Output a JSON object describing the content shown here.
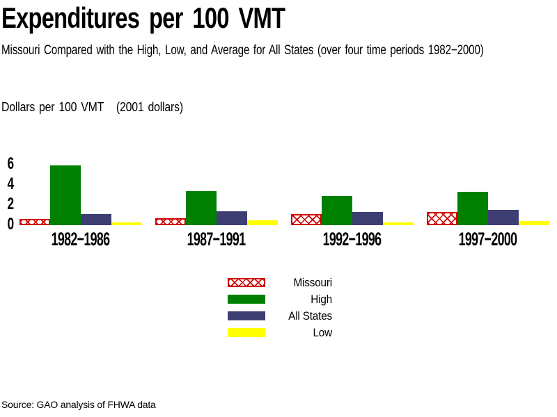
{
  "header": {
    "title": "Expenditures per 100 VMT",
    "subtitle": "Missouri Compared with the High, Low, and Average for All States (over four time periods 1982−2000)"
  },
  "axis": {
    "y_title": "Dollars per 100 VMT   (2001 dollars)"
  },
  "chart_data": {
    "type": "bar",
    "title": "Expenditures per 100 VMT",
    "subtitle": "Missouri Compared with the High, Low, and Average for All States (over four time periods 1982−2000)",
    "ylabel": "Dollars per 100 VMT (2001 dollars)",
    "xlabel": "",
    "categories": [
      "1982−1986",
      "1987−1991",
      "1992−1996",
      "1997−2000"
    ],
    "series": [
      {
        "key": "missouri",
        "name": "Missouri",
        "pattern": "crosshatch",
        "color": "#ce0000",
        "values": [
          0.6,
          0.7,
          1.1,
          1.3
        ]
      },
      {
        "key": "high",
        "name": "High",
        "pattern": "solid",
        "color": "#008000",
        "values": [
          5.9,
          3.4,
          2.9,
          3.3
        ]
      },
      {
        "key": "all_states",
        "name": "All States",
        "pattern": "solid",
        "color": "#3e3e72",
        "values": [
          1.1,
          1.4,
          1.3,
          1.5
        ]
      },
      {
        "key": "low",
        "name": "Low",
        "pattern": "solid",
        "color": "#ffff00",
        "values": [
          0.3,
          0.45,
          0.25,
          0.4
        ]
      }
    ],
    "yticks": [
      0,
      2,
      4,
      6
    ],
    "ylim": [
      0,
      6.5
    ],
    "grid": false,
    "axis_lines": false,
    "legend_position": "bottom-center"
  },
  "legend": {
    "items": [
      {
        "key": "missouri",
        "label": "Missouri"
      },
      {
        "key": "high",
        "label": "High"
      },
      {
        "key": "all_states",
        "label": "All States"
      },
      {
        "key": "low",
        "label": "Low"
      }
    ]
  },
  "footer": {
    "source": "Source: GAO analysis of FHWA data"
  },
  "colors": {
    "missouri_red": "#ce0000",
    "high_green": "#008000",
    "all_states_navy": "#3e3e72",
    "low_yellow": "#ffff00",
    "text": "#000000",
    "background": "#ffffff"
  }
}
